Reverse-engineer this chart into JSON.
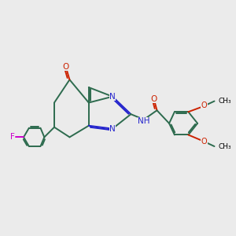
{
  "bg_color": "#ebebeb",
  "bond_color": "#2d6b4e",
  "N_color": "#2222cc",
  "O_color": "#cc2200",
  "F_color": "#cc00cc",
  "font_size": 7.5,
  "line_width": 1.4,
  "xlim": [
    0,
    10
  ],
  "ylim": [
    0,
    10
  ]
}
